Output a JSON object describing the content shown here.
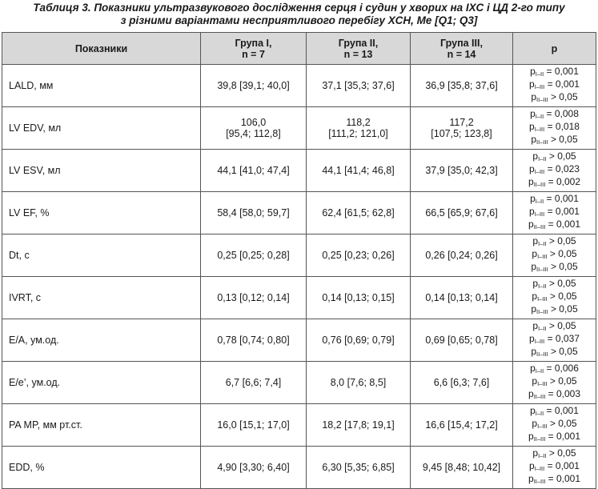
{
  "caption": {
    "line1": "Таблиця 3. Показники ультразвукового дослідження серця і судин у хворих на ІХС і ЦД 2-го типу",
    "line2": "з різними варіантами несприятливого перебігу ХСН, Ме [Q1; Q3]"
  },
  "header": {
    "indicators": "Показники",
    "g1": "Група І,",
    "g1n": "n = 7",
    "g2": "Група ІІ,",
    "g2n": "n = 13",
    "g3": "Група ІІІ,",
    "g3n": "n = 14",
    "p": "p"
  },
  "p_label": "p",
  "rows": [
    {
      "name": "LALD, мм",
      "g1": "39,8 [39,1; 40,0]",
      "g2": "37,1 [35,3; 37,6]",
      "g3": "36,9 [35,8; 37,6]",
      "p": [
        {
          "sub": "I–II",
          "rest": " = 0,001"
        },
        {
          "sub": "I–III",
          "rest": " = 0,001"
        },
        {
          "sub": "II–III",
          "rest": " > 0,05"
        }
      ]
    },
    {
      "name": "LV EDV, мл",
      "g1": "106,0",
      "g1b": "[95,4; 112,8]",
      "g2": "118,2",
      "g2b": "[111,2; 121,0]",
      "g3": "117,2",
      "g3b": "[107,5; 123,8]",
      "p": [
        {
          "sub": "I–II",
          "rest": " = 0,008"
        },
        {
          "sub": "I–III",
          "rest": " = 0,018"
        },
        {
          "sub": "II–III",
          "rest": " > 0,05"
        }
      ]
    },
    {
      "name": "LV ESV, мл",
      "g1": "44,1 [41,0; 47,4]",
      "g2": "44,1 [41,4; 46,8]",
      "g3": "37,9 [35,0; 42,3]",
      "p": [
        {
          "sub": "I–II",
          "rest": " > 0,05"
        },
        {
          "sub": "I–III",
          "rest": " = 0,023"
        },
        {
          "sub": "II–III",
          "rest": " = 0,002"
        }
      ]
    },
    {
      "name": "LV EF, %",
      "g1": "58,4 [58,0; 59,7]",
      "g2": "62,4 [61,5; 62,8]",
      "g3": "66,5 [65,9; 67,6]",
      "p": [
        {
          "sub": "I–II",
          "rest": " = 0,001"
        },
        {
          "sub": "I–III",
          "rest": " = 0,001"
        },
        {
          "sub": "II–III",
          "rest": " = 0,001"
        }
      ]
    },
    {
      "name": "Dt, с",
      "g1": "0,25 [0,25; 0,28]",
      "g2": "0,25 [0,23; 0,26]",
      "g3": "0,26 [0,24; 0,26]",
      "p": [
        {
          "sub": "I–II",
          "rest": " > 0,05"
        },
        {
          "sub": "I–III",
          "rest": " > 0,05"
        },
        {
          "sub": "II–III",
          "rest": " > 0,05"
        }
      ]
    },
    {
      "name": "IVRT, с",
      "g1": "0,13 [0,12; 0,14]",
      "g2": "0,14 [0,13; 0,15]",
      "g3": "0,14 [0,13; 0,14]",
      "p": [
        {
          "sub": "I–II",
          "rest": " > 0,05"
        },
        {
          "sub": "I–III",
          "rest": " > 0,05"
        },
        {
          "sub": "II–III",
          "rest": " > 0,05"
        }
      ]
    },
    {
      "name": "E/A, ум.од.",
      "g1": "0,78 [0,74; 0,80]",
      "g2": "0,76 [0,69; 0,79]",
      "g3": "0,69 [0,65; 0,78]",
      "p": [
        {
          "sub": "I–II",
          "rest": " > 0,05"
        },
        {
          "sub": "I–III",
          "rest": " = 0,037"
        },
        {
          "sub": "II–III",
          "rest": " > 0,05"
        }
      ]
    },
    {
      "name": "E/e’, ум.од.",
      "g1": "6,7 [6,6; 7,4]",
      "g2": "8,0 [7,6; 8,5]",
      "g3": "6,6 [6,3; 7,6]",
      "p": [
        {
          "sub": "I–II",
          "rest": " = 0,006"
        },
        {
          "sub": "I–III",
          "rest": " > 0,05"
        },
        {
          "sub": "II–III",
          "rest": " = 0,003"
        }
      ]
    },
    {
      "name": "PA MP, мм рт.ст.",
      "g1": "16,0 [15,1; 17,0]",
      "g2": "18,2 [17,8; 19,1]",
      "g3": "16,6 [15,4; 17,2]",
      "p": [
        {
          "sub": "I–II",
          "rest": " = 0,001"
        },
        {
          "sub": "I–III",
          "rest": " > 0,05"
        },
        {
          "sub": "II–III",
          "rest": " = 0,001"
        }
      ]
    },
    {
      "name": "EDD, %",
      "g1": "4,90 [3,30; 6,40]",
      "g2": "6,30 [5,35; 6,85]",
      "g3": "9,45 [8,48; 10,42]",
      "p": [
        {
          "sub": "I–II",
          "rest": " > 0,05"
        },
        {
          "sub": "I–III",
          "rest": " = 0,001"
        },
        {
          "sub": "II–III",
          "rest": " = 0,001"
        }
      ]
    }
  ]
}
